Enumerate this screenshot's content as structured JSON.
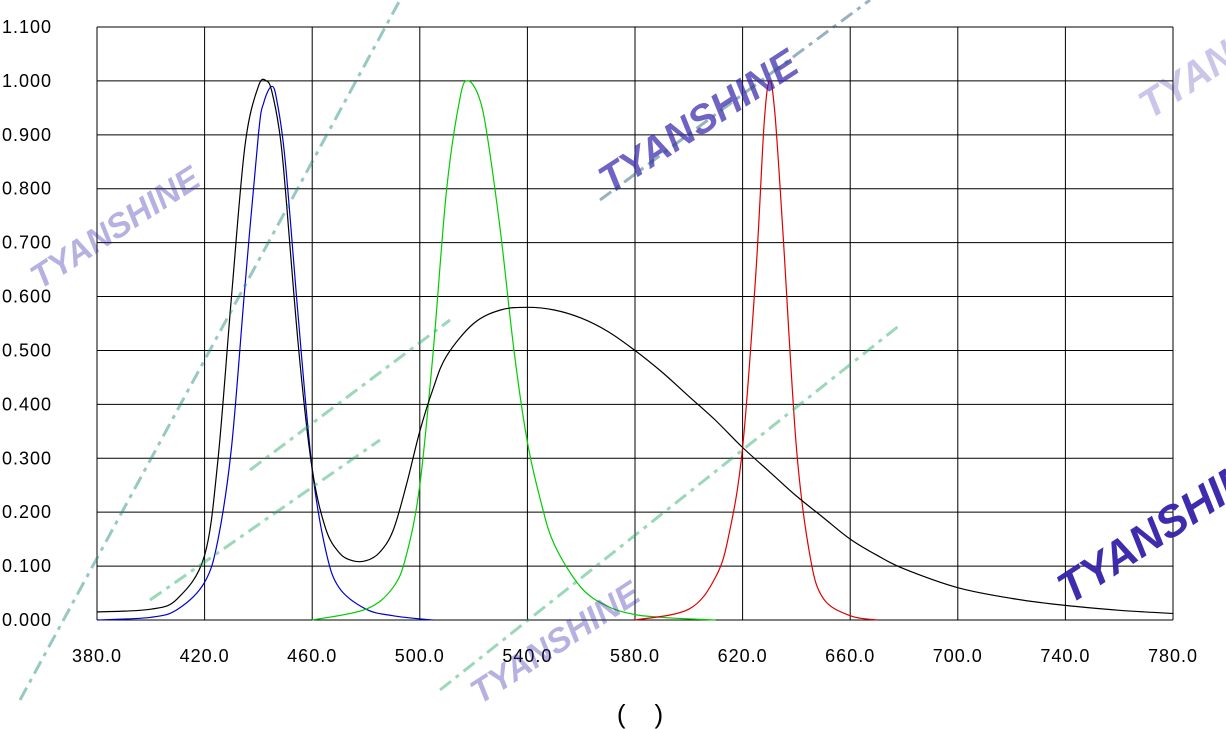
{
  "chart_data": {
    "type": "line",
    "title": "",
    "xlabel": "(    )",
    "ylabel": "",
    "xlim": [
      380,
      780
    ],
    "ylim": [
      0,
      1.1
    ],
    "grid": true,
    "xticks": [
      380,
      420,
      460,
      500,
      540,
      580,
      620,
      660,
      700,
      740,
      780
    ],
    "yticks": [
      0,
      0.1,
      0.2,
      0.3,
      0.4,
      0.5,
      0.6,
      0.7,
      0.8,
      0.9,
      1.0,
      1.1
    ],
    "xtick_labels": [
      "380.0",
      "420.0",
      "460.0",
      "500.0",
      "540.0",
      "580.0",
      "620.0",
      "660.0",
      "700.0",
      "740.0",
      "780.0"
    ],
    "ytick_labels": [
      "0.000",
      "0.100",
      "0.200",
      "0.300",
      "0.400",
      "0.500",
      "0.600",
      "0.700",
      "0.800",
      "0.900",
      "1.000",
      "1.100"
    ],
    "series": [
      {
        "color": "#0000cc",
        "x": [
          380,
          400,
          410,
          420,
          425,
          430,
          435,
          440,
          442,
          445,
          447,
          450,
          455,
          460,
          465,
          470,
          480,
          490,
          500,
          505
        ],
        "y": [
          0.0,
          0.005,
          0.02,
          0.07,
          0.15,
          0.32,
          0.62,
          0.9,
          0.96,
          0.99,
          0.96,
          0.85,
          0.55,
          0.28,
          0.13,
          0.06,
          0.02,
          0.008,
          0.002,
          0.0
        ]
      },
      {
        "color": "#00cc00",
        "x": [
          460,
          480,
          490,
          495,
          500,
          505,
          510,
          515,
          518,
          522,
          525,
          530,
          535,
          540,
          545,
          550,
          560,
          570,
          580,
          590,
          600,
          610
        ],
        "y": [
          0.0,
          0.02,
          0.06,
          0.12,
          0.25,
          0.5,
          0.8,
          0.97,
          1.0,
          0.97,
          0.9,
          0.72,
          0.5,
          0.33,
          0.22,
          0.14,
          0.06,
          0.025,
          0.01,
          0.005,
          0.002,
          0.0
        ]
      },
      {
        "color": "#dd0000",
        "x": [
          580,
          600,
          610,
          615,
          620,
          625,
          628,
          630,
          632,
          635,
          640,
          645,
          650,
          660,
          670
        ],
        "y": [
          0.0,
          0.02,
          0.08,
          0.16,
          0.32,
          0.65,
          0.92,
          1.0,
          0.94,
          0.72,
          0.32,
          0.12,
          0.04,
          0.008,
          0.0
        ]
      },
      {
        "color": "#000000",
        "x": [
          380,
          400,
          410,
          420,
          425,
          430,
          435,
          440,
          443,
          445,
          448,
          450,
          455,
          460,
          465,
          470,
          475,
          480,
          485,
          490,
          495,
          500,
          505,
          510,
          520,
          530,
          540,
          550,
          560,
          570,
          580,
          590,
          600,
          610,
          620,
          630,
          640,
          650,
          660,
          670,
          680,
          700,
          720,
          740,
          760,
          780
        ],
        "y": [
          0.015,
          0.02,
          0.04,
          0.12,
          0.3,
          0.6,
          0.88,
          0.99,
          1.0,
          0.98,
          0.9,
          0.8,
          0.5,
          0.28,
          0.17,
          0.125,
          0.11,
          0.11,
          0.125,
          0.165,
          0.25,
          0.35,
          0.43,
          0.49,
          0.55,
          0.575,
          0.58,
          0.575,
          0.56,
          0.535,
          0.5,
          0.46,
          0.415,
          0.37,
          0.32,
          0.275,
          0.23,
          0.19,
          0.15,
          0.12,
          0.095,
          0.06,
          0.04,
          0.027,
          0.018,
          0.012
        ]
      }
    ]
  },
  "watermark": {
    "text": "TYANSHINE",
    "color": "#3322aa"
  }
}
